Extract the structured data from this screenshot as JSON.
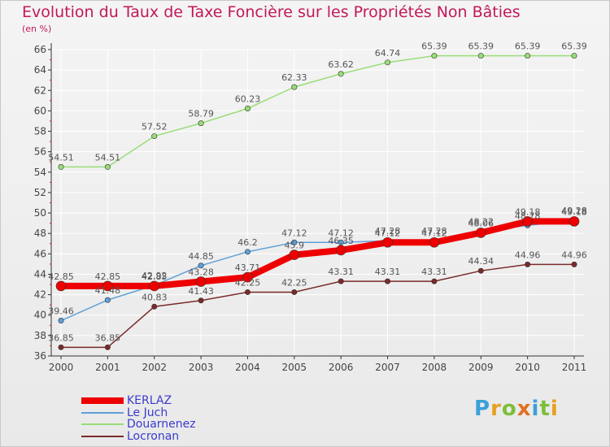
{
  "title": "Evolution du Taux de Taxe Foncière sur les Propriétés Non Bâties",
  "subtitle": "(en %)",
  "brand": "Proxiti",
  "chart_data": {
    "type": "line",
    "x": [
      "2000",
      "2001",
      "2002",
      "2003",
      "2004",
      "2005",
      "2006",
      "2007",
      "2008",
      "2009",
      "2010",
      "2011"
    ],
    "ylim": [
      36,
      66
    ],
    "yticks": [
      36,
      38,
      40,
      42,
      44,
      46,
      48,
      50,
      52,
      54,
      56,
      58,
      60,
      62,
      64,
      66
    ],
    "grid": true,
    "legend_position": "bottom-left",
    "series": [
      {
        "name": "KERLAZ",
        "color": "#ee0000",
        "values": [
          42.85,
          42.85,
          42.85,
          43.28,
          43.71,
          45.9,
          46.35,
          47.12,
          47.12,
          48.06,
          49.18,
          49.18
        ],
        "labels": [
          "42.85",
          "42.85",
          "42.85",
          "43.28",
          "43.71",
          "45.9",
          "46.35",
          "47.12",
          "47.12",
          "48.06",
          "49.18",
          "49.18"
        ]
      },
      {
        "name": "Le Juch",
        "color": "#5fa0d8",
        "values": [
          39.46,
          41.48,
          42.92,
          44.85,
          46.2,
          47.12,
          47.12,
          47.28,
          47.28,
          48.22,
          48.78,
          49.28
        ],
        "labels": [
          "39.46",
          "41.48",
          "42.92",
          "44.85",
          "46.2",
          "47.12",
          "47.12",
          "47.28",
          "47.28",
          "48.22",
          "48.78",
          "49.28"
        ]
      },
      {
        "name": "Douarnenez",
        "color": "#99dd77",
        "values": [
          54.51,
          54.51,
          57.52,
          58.79,
          60.23,
          62.33,
          63.62,
          64.74,
          65.39,
          65.39,
          65.39,
          65.39
        ],
        "labels": [
          "54.51",
          "54.51",
          "57.52",
          "58.79",
          "60.23",
          "62.33",
          "63.62",
          "64.74",
          "65.39",
          "65.39",
          "65.39",
          "65.39"
        ]
      },
      {
        "name": "Locronan",
        "color": "#7a2a2a",
        "values": [
          36.85,
          36.85,
          40.83,
          41.43,
          42.25,
          42.25,
          43.31,
          43.31,
          43.31,
          44.34,
          44.96,
          44.96
        ],
        "labels": [
          "36.85",
          "36.85",
          "40.83",
          "41.43",
          "42.25",
          "42.25",
          "43.31",
          "43.31",
          "43.31",
          "44.34",
          "44.96",
          "44.96"
        ]
      }
    ]
  }
}
